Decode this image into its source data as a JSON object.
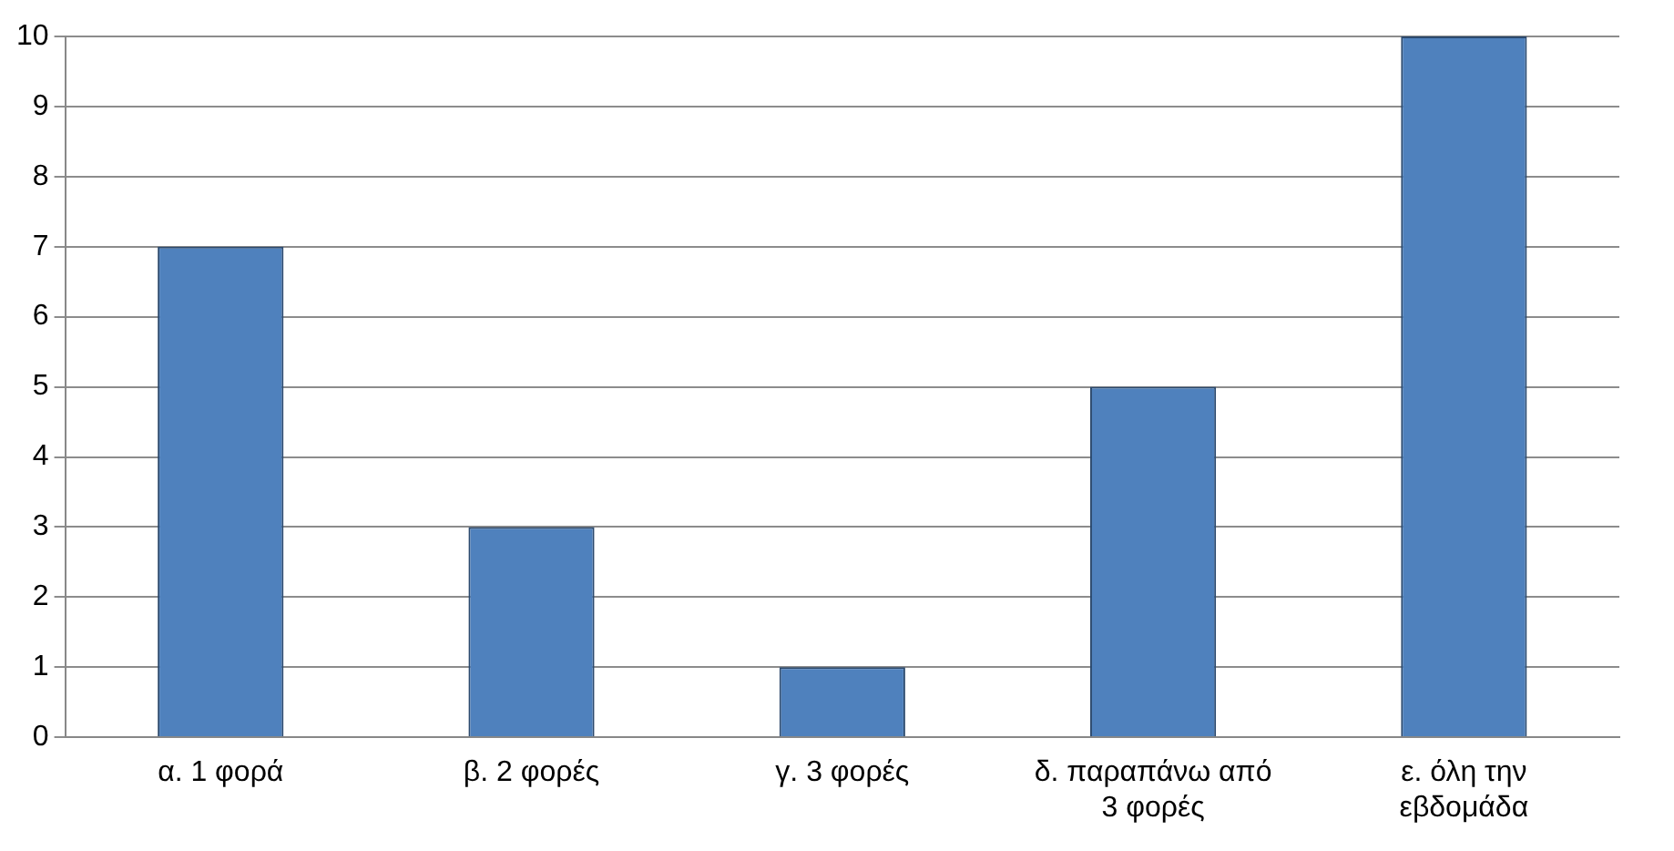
{
  "chart_data": {
    "type": "bar",
    "categories": [
      "α. 1 φορά",
      "β. 2 φορές",
      "γ. 3 φορές",
      "δ. παραπάνω από 3 φορές",
      "ε. όλη την εβδομάδα"
    ],
    "values": [
      7,
      3,
      1,
      5,
      10
    ],
    "color": "#4f81bd",
    "ylim": [
      0,
      10
    ],
    "yticks": [
      0,
      1,
      2,
      3,
      4,
      5,
      6,
      7,
      8,
      9,
      10
    ],
    "grid": "y",
    "legend": false
  }
}
